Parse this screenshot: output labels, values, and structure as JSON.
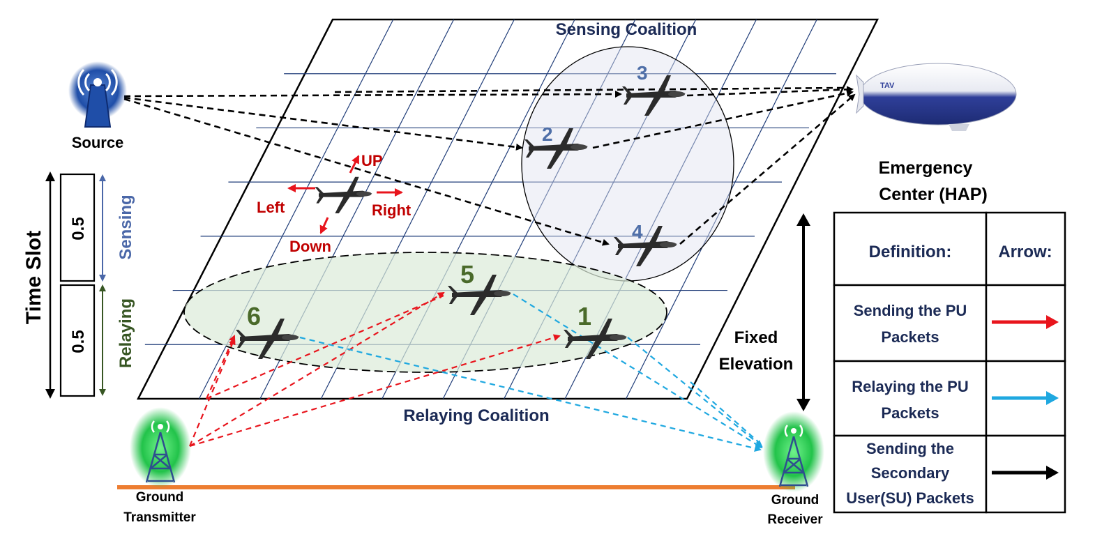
{
  "labels": {
    "sensing_coalition": "Sensing Coalition",
    "relaying_coalition": "Relaying Coalition",
    "source": "Source",
    "ground_transmitter_1": "Ground",
    "ground_transmitter_2": "Transmitter",
    "ground_receiver_1": "Ground",
    "ground_receiver_2": "Receiver",
    "emergency_center_1": "Emergency",
    "emergency_center_2": "Center (HAP)",
    "fixed_elevation_1": "Fixed",
    "fixed_elevation_2": "Elevation",
    "time_slot": "Time Slot",
    "slot_sensing_value": "0.5",
    "slot_relaying_value": "0.5",
    "sensing": "Sensing",
    "relaying": "Relaying",
    "up": "UP",
    "down": "Down",
    "left": "Left",
    "right": "Right",
    "blimp_text": "TAV"
  },
  "uavs": [
    {
      "id": "3",
      "group": "sensing"
    },
    {
      "id": "2",
      "group": "sensing"
    },
    {
      "id": "4",
      "group": "sensing"
    },
    {
      "id": "5",
      "group": "relaying"
    },
    {
      "id": "6",
      "group": "relaying"
    },
    {
      "id": "1",
      "group": "relaying"
    }
  ],
  "legend": {
    "header_definition": "Definition:",
    "header_arrow": "Arrow:",
    "rows": [
      {
        "lines": [
          "Sending the PU",
          "Packets"
        ],
        "color": "#e8141c"
      },
      {
        "lines": [
          "Relaying the PU",
          "Packets"
        ],
        "color": "#1fa8e0"
      },
      {
        "lines": [
          "Sending the",
          "Secondary",
          "User(SU) Packets"
        ],
        "color": "#000000"
      }
    ]
  },
  "colors": {
    "pu_send": "#e8141c",
    "pu_relay": "#1fa8e0",
    "su_send": "#000000",
    "grid": "#1f3c78",
    "tower_glow": "#22c34a",
    "ground_line": "#ed7d31"
  }
}
